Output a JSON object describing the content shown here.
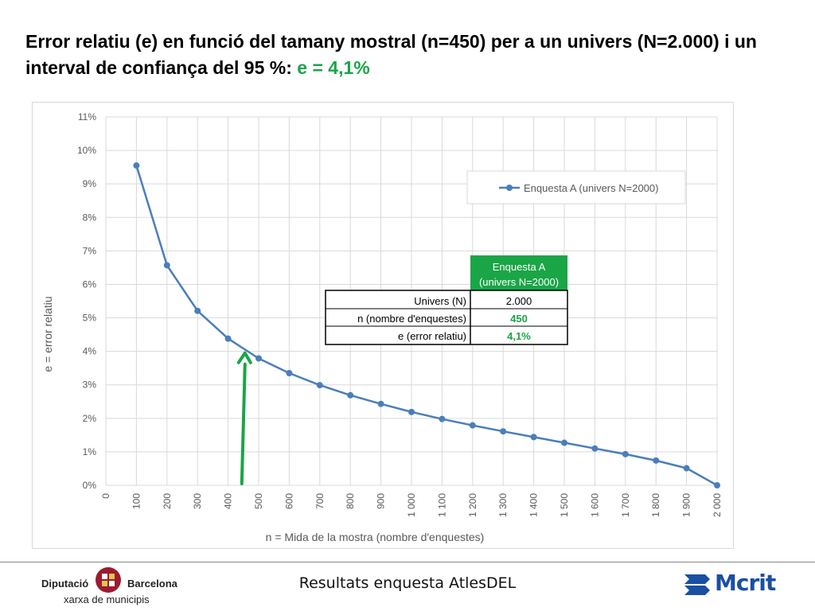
{
  "title": {
    "main": "Error relatiu (e) en funció del tamany mostral (n=450) per a un univers (N=2.000) i un interval de confiança del 95 %: ",
    "highlight": "e = 4,1%"
  },
  "colors": {
    "series": "#4a7ebb",
    "highlight": "#1aa547",
    "grid": "#d9d9d9",
    "axis_text": "#595959",
    "arrow": "#1aa547"
  },
  "chart_data": {
    "type": "line",
    "xlabel": "n = Mida de la mostra (nombre d'enquestes)",
    "ylabel": "e = error relatiu",
    "x_tick_labels": [
      "0",
      "100",
      "200",
      "300",
      "400",
      "500",
      "600",
      "700",
      "800",
      "900",
      "1 000",
      "1 100",
      "1 200",
      "1 300",
      "1 400",
      "1 500",
      "1 600",
      "1 700",
      "1 800",
      "1 900",
      "2 000"
    ],
    "y_tick_labels": [
      "0%",
      "1%",
      "2%",
      "3%",
      "4%",
      "5%",
      "6%",
      "7%",
      "8%",
      "9%",
      "10%",
      "11%"
    ],
    "xlim": [
      0,
      2000
    ],
    "ylim": [
      0,
      11
    ],
    "grid": true,
    "legend_position": "top-right",
    "series": [
      {
        "name": "Enquesta A (univers N=2000)",
        "x": [
          100,
          200,
          300,
          400,
          500,
          600,
          700,
          800,
          900,
          1000,
          1100,
          1200,
          1300,
          1400,
          1500,
          1600,
          1700,
          1800,
          1900,
          2000
        ],
        "y": [
          9.55,
          6.57,
          5.21,
          4.38,
          3.79,
          3.35,
          2.99,
          2.69,
          2.43,
          2.19,
          1.98,
          1.79,
          1.61,
          1.44,
          1.27,
          1.1,
          0.93,
          0.74,
          0.51,
          0
        ]
      }
    ],
    "highlight_x": 450
  },
  "summary_table": {
    "header_line1": "Enquesta A",
    "header_line2": "(univers N=2000)",
    "rows": [
      {
        "label": "Univers (N)",
        "value": "2.000"
      },
      {
        "label": "n (nombre d'enquestes)",
        "value": "450"
      },
      {
        "label": "e (error relatiu)",
        "value": "4,1%"
      }
    ]
  },
  "footer": {
    "center_text": "Resultats enquesta AtlesDEL",
    "left_logo_word1": "Diputació",
    "left_logo_word2": "Barcelona",
    "left_logo_sub": "xarxa de municipis",
    "right_logo": "Mcrit"
  }
}
